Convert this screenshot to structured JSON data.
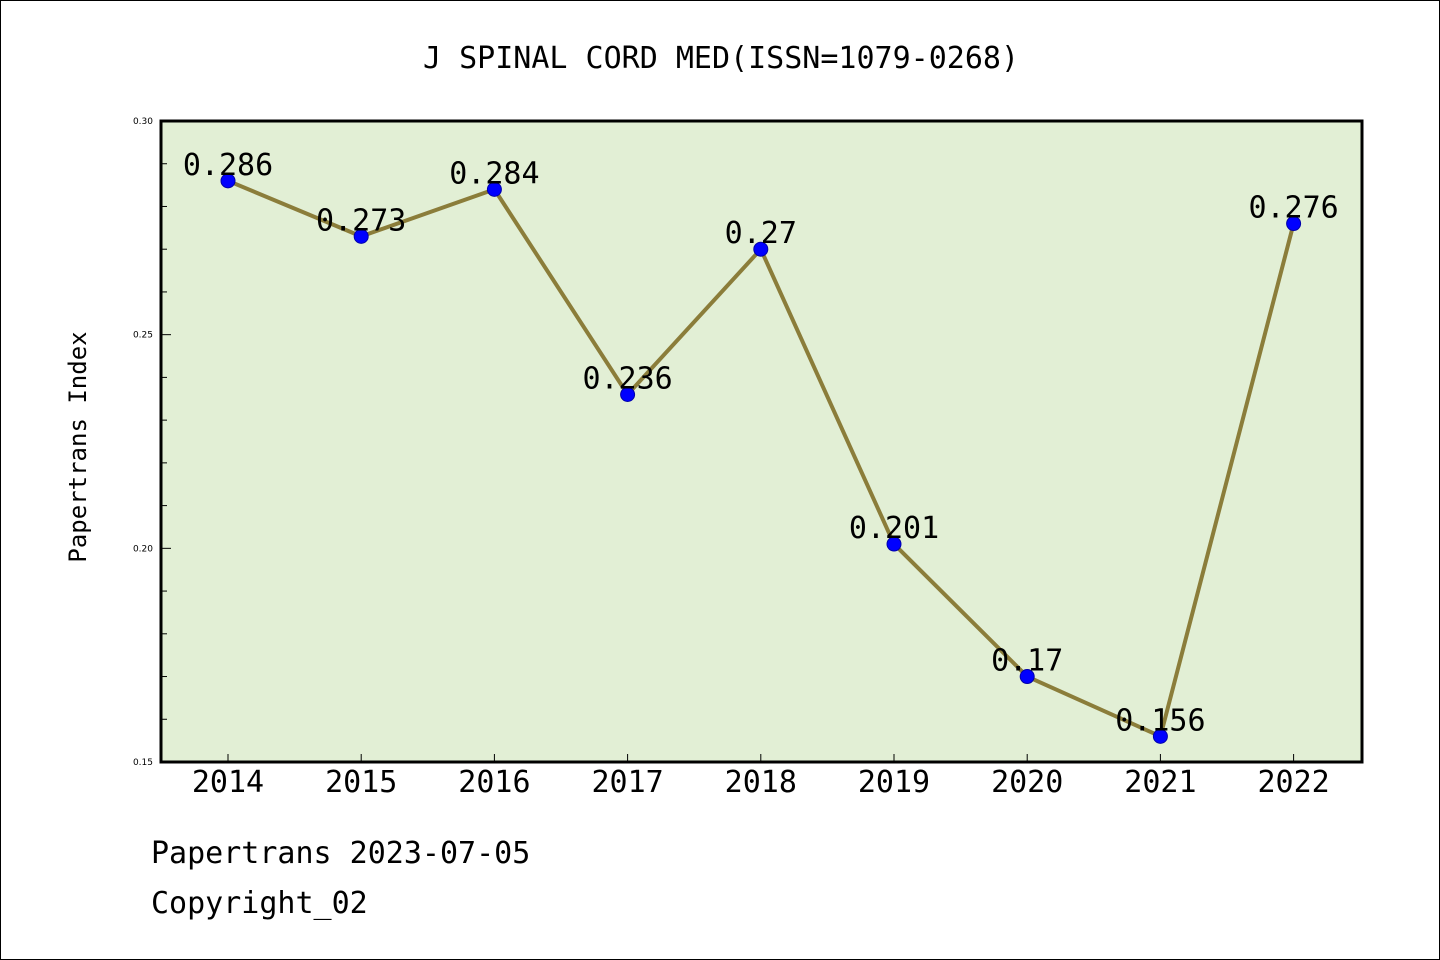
{
  "chart_data": {
    "type": "line",
    "title": "J SPINAL CORD MED(ISSN=1079-0268)",
    "xlabel": "",
    "ylabel": "Papertrans Index",
    "categories": [
      "2014",
      "2015",
      "2016",
      "2017",
      "2018",
      "2019",
      "2020",
      "2021",
      "2022"
    ],
    "series": [
      {
        "values": [
          0.286,
          0.273,
          0.284,
          0.236,
          0.27,
          0.201,
          0.17,
          0.156,
          0.276
        ],
        "labels": [
          "0.286",
          "0.273",
          "0.284",
          "0.236",
          "0.27",
          "0.201",
          "0.17",
          "0.156",
          "0.276"
        ]
      }
    ],
    "ylim": [
      0.15,
      0.3
    ],
    "yticks": [
      0.15,
      0.2,
      0.25,
      0.3
    ],
    "ytick_labels": [
      "0.15",
      "0.20",
      "0.25",
      "0.30"
    ],
    "grid": false,
    "legend": "none"
  },
  "footer": {
    "line1": "Papertrans 2023-07-05",
    "line2": "Copyright_02"
  },
  "colors": {
    "plot_background": "#e2efd5",
    "line": "#8b7d3a",
    "marker": "#0000ff",
    "axes": "#000000"
  }
}
